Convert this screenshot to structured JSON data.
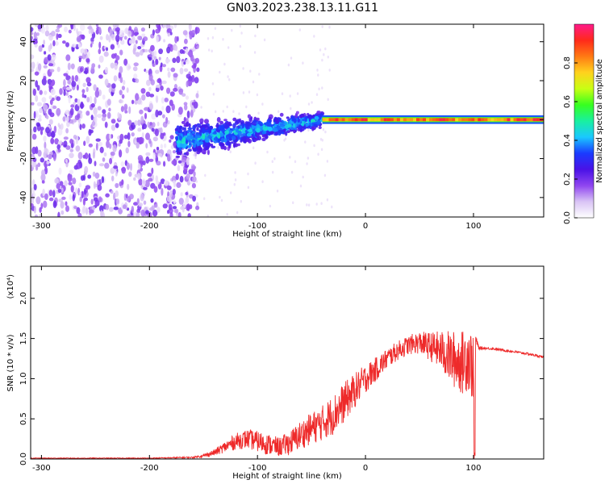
{
  "title": "GN03.2023.238.13.11.G11",
  "colors": {
    "snr_line": "#ee2a2a",
    "colormap": [
      "#ffffff",
      "#d9c4f5",
      "#8f45f0",
      "#4a12e6",
      "#1a3bff",
      "#1ac8ff",
      "#19f0a0",
      "#37ff1f",
      "#c8ff14",
      "#ffd21e",
      "#ff7a14",
      "#ff2a1a",
      "#ff1a8a"
    ]
  },
  "chart_data": [
    {
      "type": "heatmap",
      "title": "GN03.2023.238.13.11.G11",
      "xlabel": "Height of straight line (km)",
      "ylabel": "Frequency (Hz)",
      "xlim": [
        -310,
        165
      ],
      "ylim": [
        -50,
        49
      ],
      "xticks": [
        -300,
        -200,
        -100,
        0,
        100
      ],
      "yticks": [
        -40,
        -20,
        0,
        20,
        40
      ],
      "colorbar": {
        "label": "Normalized spectral amplitude",
        "range": [
          0,
          1
        ],
        "ticks": [
          "0.0",
          "0.2",
          "0.4",
          "0.6",
          "0.8"
        ],
        "tick_values": [
          0.0,
          0.2,
          0.4,
          0.6,
          0.8
        ]
      },
      "regions": [
        {
          "x": [
            -310,
            -155
          ],
          "freq": [
            -50,
            49
          ],
          "amplitude": [
            0.0,
            0.22
          ],
          "pattern": "scattered noise"
        },
        {
          "x": [
            -175,
            -40
          ],
          "freq_center_start": -11,
          "freq_center_end": 0,
          "half_width_start": 12,
          "half_width_end": 5,
          "amplitude": [
            0.15,
            0.45
          ],
          "pattern": "broadening band"
        },
        {
          "x": [
            -40,
            165
          ],
          "freq": [
            -2,
            2
          ],
          "amplitude": [
            0.75,
            0.95
          ],
          "pattern": "narrow line at 0 Hz"
        }
      ]
    },
    {
      "type": "line",
      "title": "",
      "xlabel": "Height of straight line (km)",
      "ylabel": "SNR (10 * v/v)",
      "y_multiplier": "(x10⁴)",
      "xlim": [
        -310,
        165
      ],
      "ylim": [
        0,
        2.4
      ],
      "xticks": [
        -300,
        -200,
        -100,
        0,
        100
      ],
      "yticks": [
        "0.0",
        "0.5",
        "1.0",
        "1.5",
        "2.0"
      ],
      "ytick_values": [
        0.0,
        0.5,
        1.0,
        1.5,
        2.0
      ],
      "series": [
        {
          "x": [
            -310,
            -250,
            -200,
            -160,
            -150,
            -140,
            -130,
            -120,
            -110,
            -100,
            -90,
            -80,
            -70,
            -60,
            -50,
            -40,
            -30,
            -20,
            -10,
            0,
            10,
            20,
            30,
            40,
            50,
            60,
            70,
            80,
            90,
            95,
            100,
            101,
            102,
            105,
            110,
            120,
            130,
            140,
            150,
            165
          ],
          "y": [
            0.01,
            0.01,
            0.01,
            0.02,
            0.04,
            0.08,
            0.15,
            0.22,
            0.25,
            0.22,
            0.18,
            0.15,
            0.2,
            0.3,
            0.38,
            0.45,
            0.55,
            0.7,
            0.85,
            1.0,
            1.12,
            1.25,
            1.35,
            1.42,
            1.45,
            1.4,
            1.35,
            1.25,
            1.2,
            1.3,
            1.1,
            0.05,
            1.5,
            1.38,
            1.38,
            1.37,
            1.35,
            1.33,
            1.31,
            1.27
          ],
          "noise_amplitude": [
            0.005,
            0.005,
            0.005,
            0.01,
            0.02,
            0.04,
            0.07,
            0.1,
            0.12,
            0.13,
            0.13,
            0.12,
            0.15,
            0.18,
            0.2,
            0.22,
            0.25,
            0.25,
            0.22,
            0.18,
            0.15,
            0.13,
            0.12,
            0.12,
            0.14,
            0.18,
            0.25,
            0.35,
            0.4,
            0.45,
            0.4,
            0.0,
            0.05,
            0.02,
            0.015,
            0.015,
            0.015,
            0.015,
            0.015,
            0.015
          ]
        }
      ]
    }
  ]
}
